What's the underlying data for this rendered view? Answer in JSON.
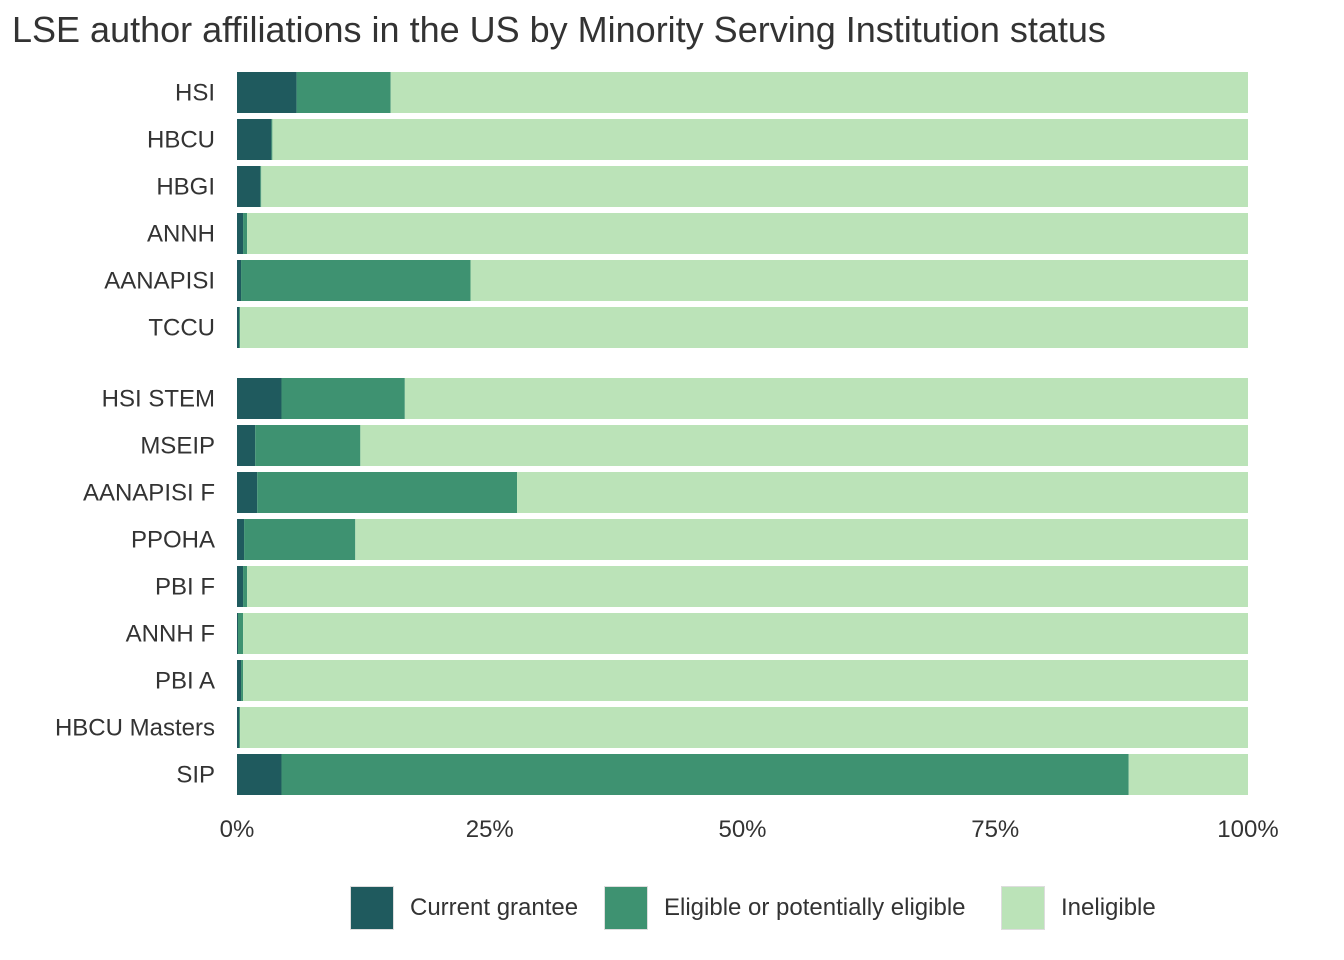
{
  "chart_data": {
    "type": "bar",
    "orientation": "horizontal",
    "stacked": true,
    "title": "LSE author affiliations in the US by Minority Serving Institution status",
    "xlabel": "",
    "ylabel": "",
    "xlim": [
      0,
      100
    ],
    "x_ticks": [
      "0%",
      "25%",
      "50%",
      "75%",
      "100%"
    ],
    "x_tick_values": [
      0,
      25,
      50,
      75,
      100
    ],
    "grid": false,
    "legend_position": "bottom",
    "groups": [
      {
        "categories": [
          "HSI",
          "HBCU",
          "HBGI",
          "ANNH",
          "AANAPISI",
          "TCCU"
        ]
      },
      {
        "categories": [
          "HSI STEM",
          "MSEIP",
          "AANAPISI F",
          "PPOHA",
          "PBI F",
          "ANNH F",
          "PBI A",
          "HBCU Masters",
          "SIP"
        ]
      }
    ],
    "categories": [
      "HSI",
      "HBCU",
      "HBGI",
      "ANNH",
      "AANAPISI",
      "TCCU",
      "HSI STEM",
      "MSEIP",
      "AANAPISI F",
      "PPOHA",
      "PBI F",
      "ANNH F",
      "PBI A",
      "HBCU Masters",
      "SIP"
    ],
    "series": [
      {
        "name": "Current grantee",
        "color": "#1f5a5e",
        "values": [
          5.9,
          3.4,
          2.3,
          0.6,
          0.4,
          0.2,
          4.4,
          1.8,
          2.0,
          0.7,
          0.6,
          0.1,
          0.4,
          0.2,
          4.4
        ]
      },
      {
        "name": "Eligible or potentially eligible",
        "color": "#3e9271",
        "values": [
          9.3,
          0.1,
          0.1,
          0.4,
          22.7,
          0.1,
          12.2,
          10.4,
          25.7,
          11.0,
          0.4,
          0.5,
          0.2,
          0.1,
          83.8
        ]
      },
      {
        "name": "Ineligible",
        "color": "#bbe3b8",
        "values": [
          84.8,
          96.5,
          97.6,
          99.0,
          76.9,
          99.7,
          83.4,
          87.8,
          72.3,
          88.3,
          99.0,
          99.4,
          99.4,
          99.7,
          11.8
        ]
      }
    ]
  }
}
